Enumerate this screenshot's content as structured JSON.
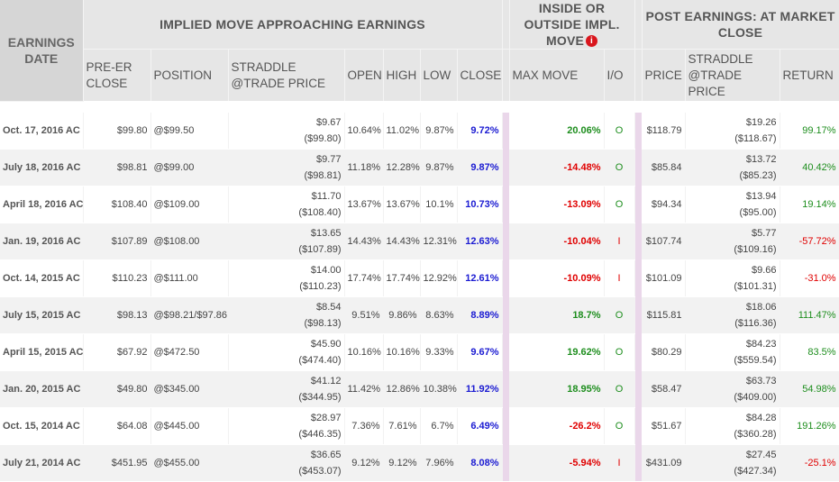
{
  "headers": {
    "earnings_date": "EARNINGS DATE",
    "group_implied": "IMPLIED MOVE APPROACHING EARNINGS",
    "group_inside_outside": "INSIDE OR OUTSIDE IMPL. MOVE",
    "info_icon_glyph": "i",
    "group_post": "POST EARNINGS: AT MARKET CLOSE",
    "pre_er_close": "PRE-ER CLOSE",
    "position": "POSITION",
    "straddle_trade_price": "STRADDLE @TRADE PRICE",
    "open": "OPEN",
    "high": "HIGH",
    "low": "LOW",
    "close": "CLOSE",
    "max_move": "MAX MOVE",
    "io": "I/O",
    "price": "PRICE",
    "post_straddle_trade_price": "STRADDLE @TRADE PRICE",
    "return": "RETURN"
  },
  "colors": {
    "header_bg": "#e6e6e6",
    "close_blue": "#1b1bd2",
    "positive_green": "#1e8e1e",
    "negative_red": "#e00000",
    "separator_pink": "#ead7ea"
  },
  "rows": [
    {
      "date": "Oct. 17, 2016 AC",
      "pre_er_close": "$99.80",
      "position": "@$99.50",
      "straddle": "$9.67",
      "straddle_sub": "($99.80)",
      "open": "10.64%",
      "high": "11.02%",
      "low": "9.87%",
      "close": "9.72%",
      "max_move": "20.06%",
      "max_sign": "pos",
      "io": "O",
      "price": "$118.79",
      "post_straddle": "$19.26",
      "post_straddle_sub": "($118.67)",
      "return": "99.17%",
      "ret_sign": "pos"
    },
    {
      "date": "July 18, 2016 AC",
      "pre_er_close": "$98.81",
      "position": "@$99.00",
      "straddle": "$9.77",
      "straddle_sub": "($98.81)",
      "open": "11.18%",
      "high": "12.28%",
      "low": "9.87%",
      "close": "9.87%",
      "max_move": "-14.48%",
      "max_sign": "neg",
      "io": "O",
      "price": "$85.84",
      "post_straddle": "$13.72",
      "post_straddle_sub": "($85.23)",
      "return": "40.42%",
      "ret_sign": "pos"
    },
    {
      "date": "April 18, 2016 AC",
      "pre_er_close": "$108.40",
      "position": "@$109.00",
      "straddle": "$11.70",
      "straddle_sub": "($108.40)",
      "open": "13.67%",
      "high": "13.67%",
      "low": "10.1%",
      "close": "10.73%",
      "max_move": "-13.09%",
      "max_sign": "neg",
      "io": "O",
      "price": "$94.34",
      "post_straddle": "$13.94",
      "post_straddle_sub": "($95.00)",
      "return": "19.14%",
      "ret_sign": "pos"
    },
    {
      "date": "Jan. 19, 2016 AC",
      "pre_er_close": "$107.89",
      "position": "@$108.00",
      "straddle": "$13.65",
      "straddle_sub": "($107.89)",
      "open": "14.43%",
      "high": "14.43%",
      "low": "12.31%",
      "close": "12.63%",
      "max_move": "-10.04%",
      "max_sign": "neg",
      "io": "I",
      "price": "$107.74",
      "post_straddle": "$5.77",
      "post_straddle_sub": "($109.16)",
      "return": "-57.72%",
      "ret_sign": "neg"
    },
    {
      "date": "Oct. 14, 2015 AC",
      "pre_er_close": "$110.23",
      "position": "@$111.00",
      "straddle": "$14.00",
      "straddle_sub": "($110.23)",
      "open": "17.74%",
      "high": "17.74%",
      "low": "12.92%",
      "close": "12.61%",
      "max_move": "-10.09%",
      "max_sign": "neg",
      "io": "I",
      "price": "$101.09",
      "post_straddle": "$9.66",
      "post_straddle_sub": "($101.31)",
      "return": "-31.0%",
      "ret_sign": "neg"
    },
    {
      "date": "July 15, 2015 AC",
      "pre_er_close": "$98.13",
      "position": "@$98.21/$97.86",
      "straddle": "$8.54",
      "straddle_sub": "($98.13)",
      "open": "9.51%",
      "high": "9.86%",
      "low": "8.63%",
      "close": "8.89%",
      "max_move": "18.7%",
      "max_sign": "pos",
      "io": "O",
      "price": "$115.81",
      "post_straddle": "$18.06",
      "post_straddle_sub": "($116.36)",
      "return": "111.47%",
      "ret_sign": "pos"
    },
    {
      "date": "April 15, 2015 AC",
      "pre_er_close": "$67.92",
      "position": "@$472.50",
      "straddle": "$45.90",
      "straddle_sub": "($474.40)",
      "open": "10.16%",
      "high": "10.16%",
      "low": "9.33%",
      "close": "9.67%",
      "max_move": "19.62%",
      "max_sign": "pos",
      "io": "O",
      "price": "$80.29",
      "post_straddle": "$84.23",
      "post_straddle_sub": "($559.54)",
      "return": "83.5%",
      "ret_sign": "pos"
    },
    {
      "date": "Jan. 20, 2015 AC",
      "pre_er_close": "$49.80",
      "position": "@$345.00",
      "straddle": "$41.12",
      "straddle_sub": "($344.95)",
      "open": "11.42%",
      "high": "12.86%",
      "low": "10.38%",
      "close": "11.92%",
      "max_move": "18.95%",
      "max_sign": "pos",
      "io": "O",
      "price": "$58.47",
      "post_straddle": "$63.73",
      "post_straddle_sub": "($409.00)",
      "return": "54.98%",
      "ret_sign": "pos"
    },
    {
      "date": "Oct. 15, 2014 AC",
      "pre_er_close": "$64.08",
      "position": "@$445.00",
      "straddle": "$28.97",
      "straddle_sub": "($446.35)",
      "open": "7.36%",
      "high": "7.61%",
      "low": "6.7%",
      "close": "6.49%",
      "max_move": "-26.2%",
      "max_sign": "neg",
      "io": "O",
      "price": "$51.67",
      "post_straddle": "$84.28",
      "post_straddle_sub": "($360.28)",
      "return": "191.26%",
      "ret_sign": "pos"
    },
    {
      "date": "July 21, 2014 AC",
      "pre_er_close": "$451.95",
      "position": "@$455.00",
      "straddle": "$36.65",
      "straddle_sub": "($453.07)",
      "open": "9.12%",
      "high": "9.12%",
      "low": "7.96%",
      "close": "8.08%",
      "max_move": "-5.94%",
      "max_sign": "neg",
      "io": "I",
      "price": "$431.09",
      "post_straddle": "$27.45",
      "post_straddle_sub": "($427.34)",
      "return": "-25.1%",
      "ret_sign": "neg"
    }
  ]
}
